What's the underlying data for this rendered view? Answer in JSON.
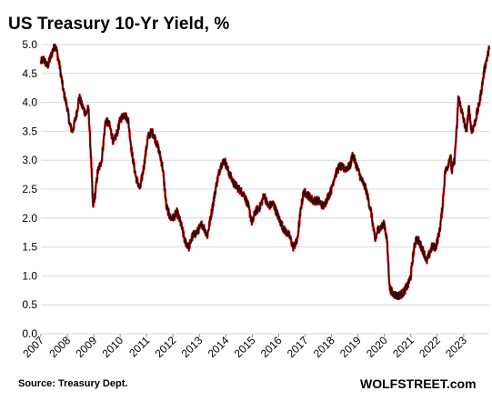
{
  "chart_data": {
    "type": "line",
    "title": "US Treasury 10-Yr Yield, %",
    "source": "Source: Treasury Dept.",
    "brand": "WOLFSTREET.com",
    "xlabel": "",
    "ylabel": "",
    "ylim": [
      0,
      5
    ],
    "xlim": [
      2007,
      2023.97
    ],
    "y_ticks": [
      "0.0",
      "0.5",
      "1.0",
      "1.5",
      "2.0",
      "2.5",
      "3.0",
      "3.5",
      "4.0",
      "4.5",
      "5.0"
    ],
    "x_ticks": [
      "2007",
      "2008",
      "2009",
      "2010",
      "2011",
      "2012",
      "2013",
      "2014",
      "2015",
      "2016",
      "2017",
      "2018",
      "2019",
      "2020",
      "2021",
      "2022",
      "2023"
    ],
    "grid": true,
    "legend": "none",
    "colors": {
      "line": "#111111",
      "highlight": "#e00000",
      "grid": "#d9d9d9"
    },
    "series": [
      {
        "x": [
          2007.0,
          2007.1,
          2007.25,
          2007.45,
          2007.55,
          2007.7,
          2007.85,
          2008.0,
          2008.1,
          2008.2,
          2008.35,
          2008.45,
          2008.55,
          2008.7,
          2008.8,
          2008.9,
          2008.97,
          2009.05,
          2009.15,
          2009.3,
          2009.45,
          2009.6,
          2009.75,
          2009.9,
          2010.0,
          2010.15,
          2010.3,
          2010.45,
          2010.6,
          2010.75,
          2010.9,
          2011.05,
          2011.2,
          2011.3,
          2011.45,
          2011.6,
          2011.75,
          2011.9,
          2012.0,
          2012.15,
          2012.3,
          2012.45,
          2012.6,
          2012.75,
          2012.9,
          2013.1,
          2013.3,
          2013.5,
          2013.65,
          2013.8,
          2013.95,
          2014.1,
          2014.3,
          2014.5,
          2014.7,
          2014.85,
          2015.0,
          2015.1,
          2015.3,
          2015.45,
          2015.6,
          2015.8,
          2016.0,
          2016.2,
          2016.4,
          2016.55,
          2016.7,
          2016.85,
          2016.95,
          2017.1,
          2017.3,
          2017.5,
          2017.7,
          2017.9,
          2018.0,
          2018.1,
          2018.3,
          2018.5,
          2018.7,
          2018.8,
          2018.95,
          2019.1,
          2019.3,
          2019.5,
          2019.65,
          2019.75,
          2019.9,
          2020.0,
          2020.1,
          2020.2,
          2020.3,
          2020.5,
          2020.7,
          2020.9,
          2021.0,
          2021.1,
          2021.2,
          2021.3,
          2021.5,
          2021.6,
          2021.8,
          2021.95,
          2022.1,
          2022.2,
          2022.3,
          2022.4,
          2022.5,
          2022.55,
          2022.65,
          2022.75,
          2022.8,
          2022.9,
          2023.0,
          2023.1,
          2023.2,
          2023.3,
          2023.4,
          2023.5,
          2023.6,
          2023.7,
          2023.8,
          2023.9,
          2023.97
        ],
        "y": [
          4.7,
          4.75,
          4.62,
          4.9,
          5.0,
          4.65,
          4.2,
          3.9,
          3.6,
          3.5,
          3.8,
          4.1,
          3.95,
          3.8,
          3.9,
          3.0,
          2.2,
          2.4,
          2.8,
          3.0,
          3.7,
          3.6,
          3.3,
          3.5,
          3.7,
          3.8,
          3.7,
          3.1,
          2.7,
          2.5,
          2.9,
          3.4,
          3.5,
          3.4,
          3.2,
          2.9,
          2.2,
          2.0,
          2.0,
          2.1,
          1.9,
          1.6,
          1.5,
          1.7,
          1.75,
          1.9,
          1.7,
          2.2,
          2.6,
          2.9,
          3.0,
          2.8,
          2.6,
          2.5,
          2.4,
          2.2,
          1.9,
          2.1,
          2.2,
          2.4,
          2.2,
          2.25,
          2.0,
          1.8,
          1.7,
          1.5,
          1.6,
          2.2,
          2.45,
          2.4,
          2.3,
          2.3,
          2.2,
          2.4,
          2.5,
          2.7,
          2.9,
          2.85,
          2.9,
          3.1,
          2.9,
          2.7,
          2.5,
          2.1,
          1.6,
          1.8,
          1.85,
          1.9,
          1.6,
          0.8,
          0.7,
          0.65,
          0.7,
          0.85,
          1.0,
          1.4,
          1.65,
          1.6,
          1.4,
          1.25,
          1.5,
          1.5,
          1.8,
          2.2,
          2.8,
          2.9,
          3.1,
          2.8,
          3.0,
          3.6,
          4.1,
          3.9,
          3.7,
          3.5,
          3.9,
          3.5,
          3.6,
          3.8,
          4.0,
          4.3,
          4.6,
          4.8,
          4.92
        ]
      }
    ]
  }
}
